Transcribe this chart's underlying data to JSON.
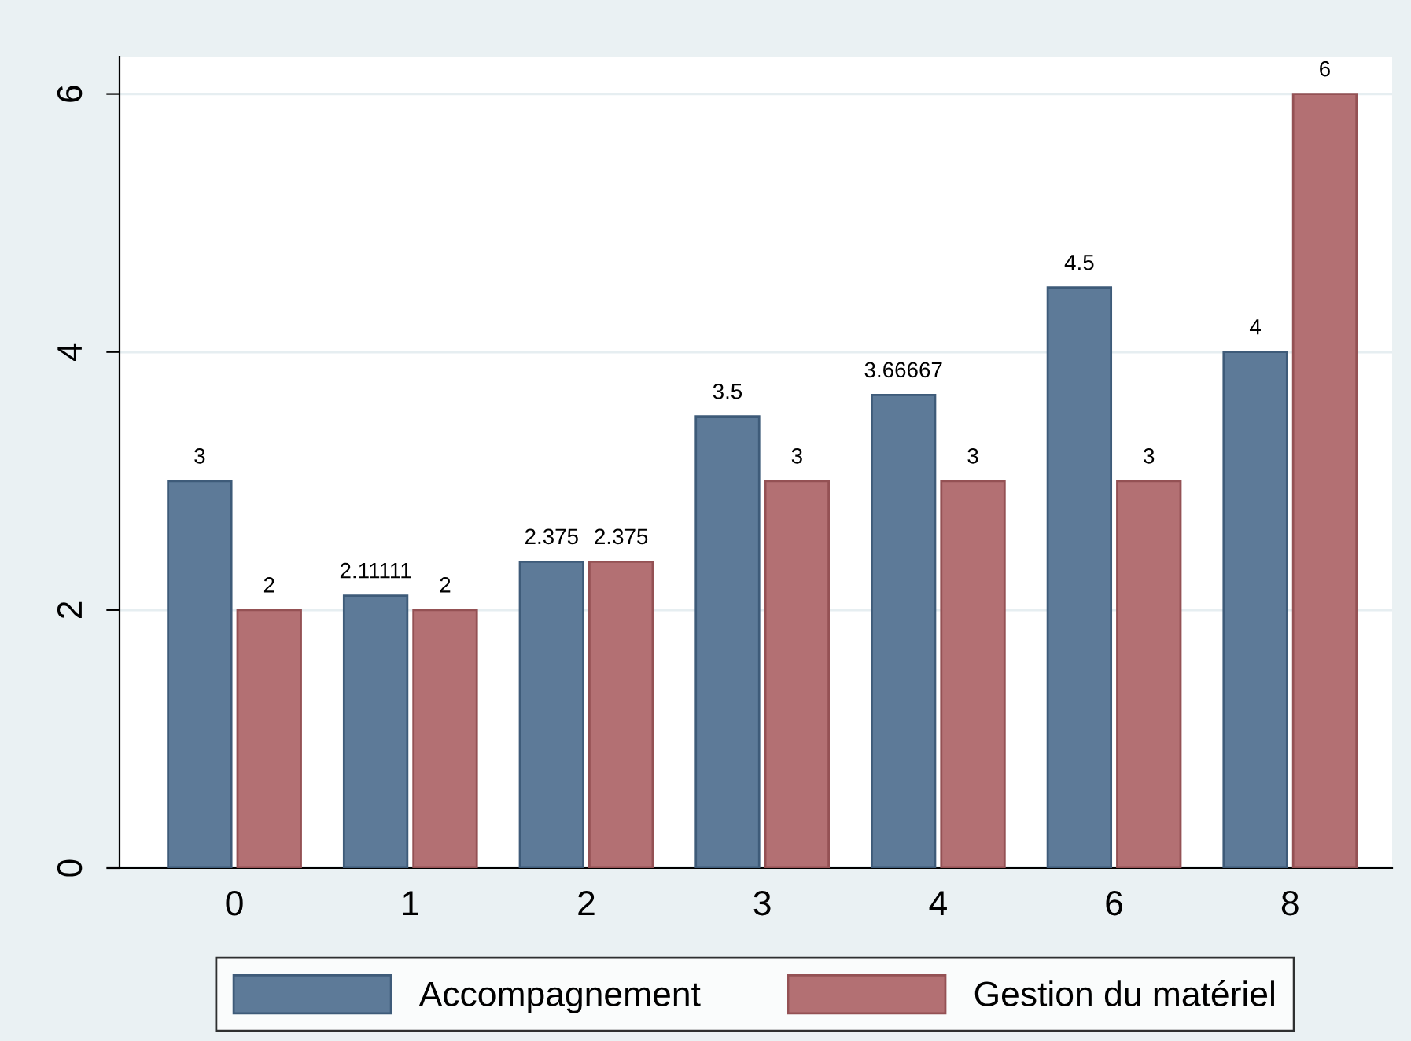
{
  "chart_data": {
    "type": "bar",
    "categories": [
      "0",
      "1",
      "2",
      "3",
      "4",
      "6",
      "8"
    ],
    "series": [
      {
        "name": "Accompagnement",
        "color": "#5d7a98",
        "values": [
          3,
          2.11111,
          2.375,
          3.5,
          3.66667,
          4.5,
          4
        ]
      },
      {
        "name": "Gestion du matériel",
        "color": "#b37073",
        "values": [
          2,
          2,
          2.375,
          3,
          3,
          3,
          6
        ]
      }
    ],
    "ylim": [
      0,
      6.29
    ],
    "yticks": [
      0,
      2,
      4,
      6
    ],
    "grid": "y",
    "legend": "bottom",
    "data_labels": true
  }
}
